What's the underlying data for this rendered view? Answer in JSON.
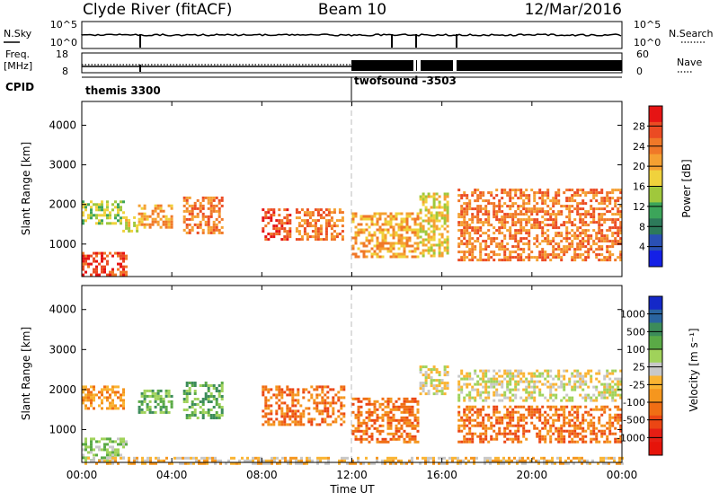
{
  "header": {
    "station": "Clyde River (fitACF)",
    "beam": "Beam 10",
    "date": "12/Mar/2016"
  },
  "summary_panel": {
    "nsky_label": "N.Sky",
    "nsky_ticks": [
      "10^5",
      "10^0"
    ],
    "nsearch_label": "N.Search",
    "freq_label_line1": "Freq.",
    "freq_label_line2": "[MHz]",
    "freq_ticks": [
      "18",
      "8"
    ],
    "nave_label": "Nave",
    "nave_ticks": [
      "60",
      "0"
    ],
    "cpid_label": "CPID",
    "cpid_segments": [
      "themis 3300",
      "twofsound -3503"
    ]
  },
  "chart_data": [
    {
      "type": "heatmap",
      "parameter": "Power",
      "ylabel": "Slant Range [km]",
      "xlabel": "Time UT",
      "ylim": [
        180,
        4600
      ],
      "yticks": [
        1000,
        2000,
        3000,
        4000
      ],
      "xlim_hours": [
        0,
        24
      ],
      "xticks": [
        "00:00",
        "04:00",
        "08:00",
        "12:00",
        "16:00",
        "20:00",
        "00:00"
      ],
      "colorbar": {
        "label": "Power [dB]",
        "ticks": [
          "4",
          "8",
          "12",
          "16",
          "20",
          "24",
          "28"
        ],
        "colors": [
          "#1420e6",
          "#2a50b4",
          "#2d7a5a",
          "#3ca55a",
          "#a0c83c",
          "#f0d23c",
          "#f5a032",
          "#f07828",
          "#eb4b23",
          "#e61414"
        ]
      },
      "echo_regions": [
        {
          "t": [
            0.0,
            1.8
          ],
          "range_km": [
            1500,
            2100
          ],
          "color_index": 4
        },
        {
          "t": [
            0.0,
            2.0
          ],
          "range_km": [
            250,
            800
          ],
          "color_index": 8
        },
        {
          "t": [
            1.8,
            2.4
          ],
          "range_km": [
            1300,
            1700
          ],
          "color_index": 5
        },
        {
          "t": [
            2.5,
            4.0
          ],
          "range_km": [
            1400,
            2000
          ],
          "color_index": 6
        },
        {
          "t": [
            4.5,
            6.2
          ],
          "range_km": [
            1300,
            2200
          ],
          "color_index": 7
        },
        {
          "t": [
            8.0,
            9.2
          ],
          "range_km": [
            1100,
            1900
          ],
          "color_index": 8
        },
        {
          "t": [
            9.5,
            11.6
          ],
          "range_km": [
            1100,
            1900
          ],
          "color_index": 7
        },
        {
          "t": [
            12.0,
            14.9
          ],
          "range_km": [
            700,
            1800
          ],
          "color_index": 6
        },
        {
          "t": [
            15.0,
            16.3
          ],
          "range_km": [
            700,
            2300
          ],
          "color_index": 5
        },
        {
          "t": [
            16.7,
            24.0
          ],
          "range_km": [
            600,
            2400
          ],
          "color_index": 7
        }
      ]
    },
    {
      "type": "heatmap",
      "parameter": "Velocity",
      "ylabel": "Slant Range [km]",
      "xlabel": "Time UT",
      "ylim": [
        180,
        4600
      ],
      "yticks": [
        1000,
        2000,
        3000,
        4000
      ],
      "xlim_hours": [
        0,
        24
      ],
      "xticks": [
        "00:00",
        "04:00",
        "08:00",
        "12:00",
        "16:00",
        "20:00",
        "00:00"
      ],
      "colorbar": {
        "label": "Velocity [m s⁻¹]",
        "ticks": [
          "1000",
          "500",
          "100",
          "25",
          "-25",
          "-100",
          "-500",
          "-1000"
        ],
        "colors": [
          "#1428c8",
          "#2a64a0",
          "#3c8c5a",
          "#5aaa46",
          "#a0d25a",
          "#c8c8c8",
          "#fab432",
          "#f5961e",
          "#f06e14",
          "#eb4614",
          "#e61e14",
          "#e6140a"
        ]
      },
      "echo_regions": [
        {
          "t": [
            0.0,
            1.8
          ],
          "range_km": [
            1500,
            2100
          ],
          "color_index": 7
        },
        {
          "t": [
            0.0,
            2.0
          ],
          "range_km": [
            250,
            800
          ],
          "color_index": 4
        },
        {
          "t": [
            2.5,
            4.0
          ],
          "range_km": [
            1400,
            2000
          ],
          "color_index": 3
        },
        {
          "t": [
            4.5,
            6.2
          ],
          "range_km": [
            1300,
            2200
          ],
          "color_index": 3
        },
        {
          "t": [
            8.0,
            11.6
          ],
          "range_km": [
            1100,
            2100
          ],
          "color_index": 8
        },
        {
          "t": [
            12.0,
            14.9
          ],
          "range_km": [
            700,
            1800
          ],
          "color_index": 8
        },
        {
          "t": [
            15.0,
            16.3
          ],
          "range_km": [
            1900,
            2600
          ],
          "color_index": 5
        },
        {
          "t": [
            16.7,
            24.0
          ],
          "range_km": [
            1700,
            2500
          ],
          "color_index": 5
        },
        {
          "t": [
            16.7,
            24.0
          ],
          "range_km": [
            700,
            1600
          ],
          "color_index": 8
        },
        {
          "t": [
            0.0,
            24.0
          ],
          "range_km": [
            180,
            320
          ],
          "color_index": 6
        }
      ]
    }
  ]
}
